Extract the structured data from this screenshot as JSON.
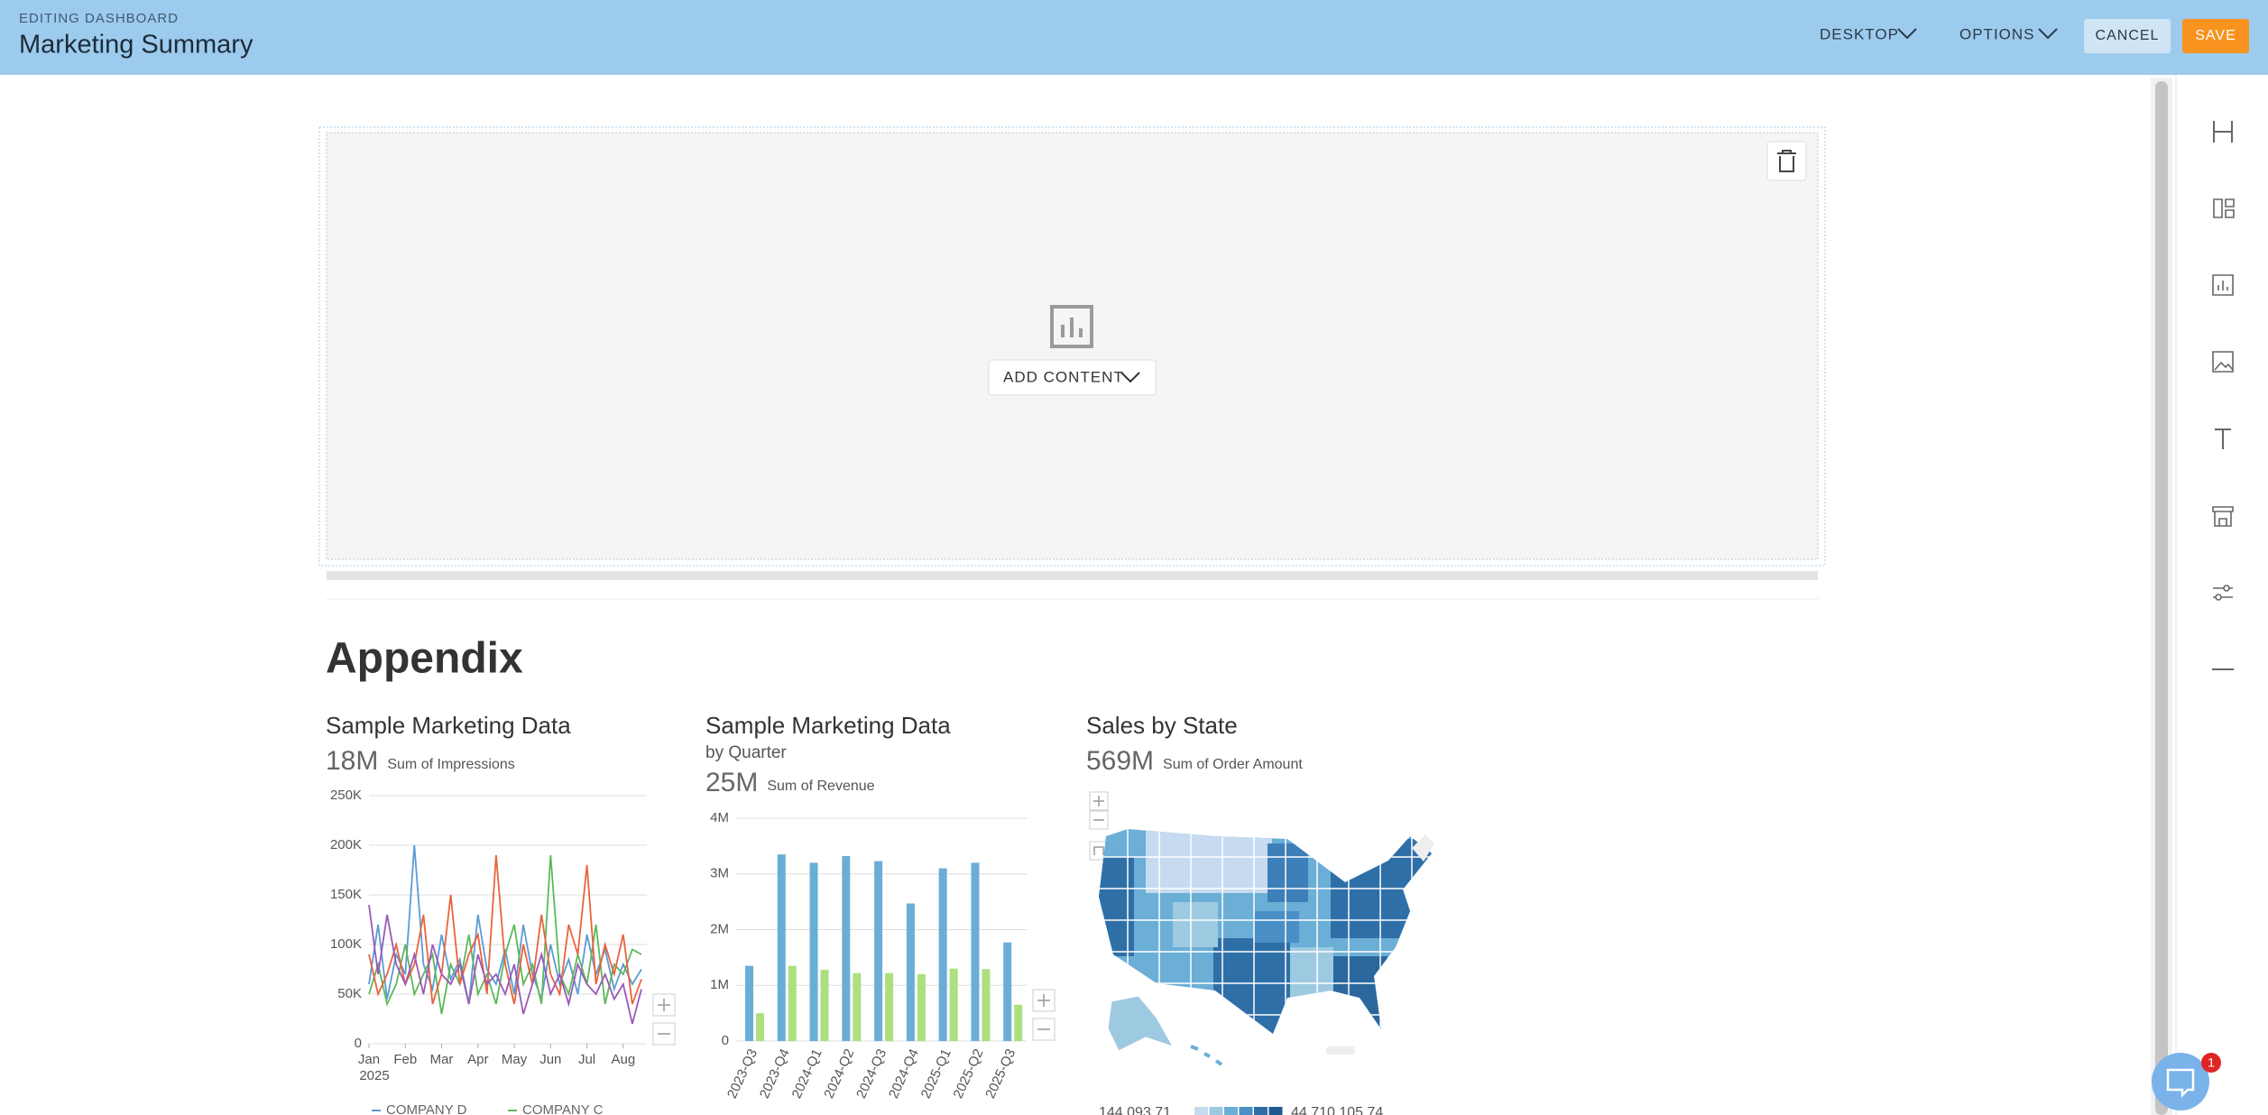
{
  "header": {
    "subtitle": "EDITING DASHBOARD",
    "title": "Marketing Summary",
    "menus": [
      "DESKTOP",
      "OPTIONS"
    ],
    "buttons": [
      "CANCEL",
      "SAVE"
    ]
  },
  "placeholder": {
    "button": "ADD CONTENT"
  },
  "section": {
    "title": "Appendix"
  },
  "chat": {
    "badge": "1"
  },
  "chart_data": [
    {
      "type": "line",
      "title": "Sample Marketing Data",
      "kpi": "18M",
      "kpi_label": "Sum of Impressions",
      "x": [
        1,
        1.25,
        1.5,
        1.75,
        2,
        2.25,
        2.5,
        2.75,
        3,
        3.25,
        3.5,
        3.75,
        4,
        4.25,
        4.5,
        4.75,
        5,
        5.25,
        5.5,
        5.75,
        6,
        6.25,
        6.5,
        6.75,
        7,
        7.25,
        7.5,
        7.75,
        8,
        8.25,
        8.5
      ],
      "xlim": [
        1,
        8.65
      ],
      "xticks": [
        {
          "value": 1,
          "label": "Jan"
        },
        {
          "value": 2,
          "label": "Feb"
        },
        {
          "value": 3,
          "label": "Mar"
        },
        {
          "value": 4,
          "label": "Apr"
        },
        {
          "value": 5,
          "label": "May"
        },
        {
          "value": 6,
          "label": "Jun"
        },
        {
          "value": 7,
          "label": "Jul"
        },
        {
          "value": 8,
          "label": "Aug"
        }
      ],
      "x_sub_label": "2025",
      "ylim": [
        0,
        250000
      ],
      "yticks": [
        0,
        {
          "value": 50000,
          "label": "50K"
        },
        {
          "value": 100000,
          "label": "100K"
        },
        {
          "value": 150000,
          "label": "150K"
        },
        {
          "value": 200000,
          "label": "200K"
        },
        {
          "value": 250000,
          "label": "250K"
        }
      ],
      "grid": true,
      "series": [
        {
          "name": "COMPANY D",
          "color": "#5b9bd5",
          "values": [
            60000,
            120000,
            45000,
            90000,
            70000,
            200000,
            80000,
            55000,
            110000,
            65000,
            85000,
            40000,
            130000,
            75000,
            60000,
            95000,
            50000,
            120000,
            70000,
            45000,
            100000,
            60000,
            85000,
            50000,
            110000,
            70000,
            95000,
            55000,
            80000,
            60000,
            75000
          ]
        },
        {
          "name": "COMPANY C",
          "color": "#5cb85c",
          "values": [
            50000,
            80000,
            40000,
            60000,
            100000,
            50000,
            70000,
            90000,
            30000,
            80000,
            60000,
            110000,
            50000,
            70000,
            40000,
            90000,
            120000,
            60000,
            80000,
            40000,
            190000,
            70000,
            50000,
            90000,
            60000,
            120000,
            40000,
            80000,
            70000,
            95000,
            90000
          ]
        },
        {
          "color": "#e8643c",
          "values": [
            90000,
            50000,
            70000,
            100000,
            60000,
            80000,
            130000,
            40000,
            70000,
            150000,
            60000,
            90000,
            110000,
            50000,
            190000,
            80000,
            40000,
            100000,
            60000,
            130000,
            70000,
            50000,
            120000,
            90000,
            180000,
            60000,
            100000,
            70000,
            110000,
            40000,
            65000
          ]
        },
        {
          "color": "#9b59b6",
          "values": [
            140000,
            70000,
            130000,
            80000,
            60000,
            90000,
            50000,
            100000,
            70000,
            60000,
            80000,
            40000,
            90000,
            60000,
            70000,
            50000,
            80000,
            30000,
            60000,
            90000,
            50000,
            70000,
            40000,
            80000,
            60000,
            50000,
            70000,
            45000,
            60000,
            20000,
            55000
          ]
        }
      ]
    },
    {
      "type": "bar",
      "title": "Sample Marketing Data",
      "subtitle": "by Quarter",
      "kpi": "25M",
      "kpi_label": "Sum of Revenue",
      "categories": [
        "2023-Q3",
        "2023-Q4",
        "2024-Q1",
        "2024-Q2",
        "2024-Q3",
        "2024-Q4",
        "2025-Q1",
        "2025-Q2",
        "2025-Q3"
      ],
      "ylim": [
        0,
        4000000
      ],
      "yticks": [
        0,
        {
          "value": 1000000,
          "label": "1M"
        },
        {
          "value": 2000000,
          "label": "2M"
        },
        {
          "value": 3000000,
          "label": "3M"
        },
        {
          "value": 4000000,
          "label": "4M"
        }
      ],
      "grid": true,
      "series": [
        {
          "color": "#6aaed6",
          "values": [
            1350000,
            3350000,
            3200000,
            3320000,
            3230000,
            2470000,
            3100000,
            3200000,
            1770000
          ]
        },
        {
          "color": "#addf7f",
          "values": [
            500000,
            1350000,
            1280000,
            1220000,
            1220000,
            1200000,
            1300000,
            1290000,
            650000
          ]
        }
      ]
    },
    {
      "type": "map",
      "title": "Sales by State",
      "kpi": "569M",
      "kpi_label": "Sum of Order Amount",
      "color_scale": {
        "min": {
          "value": 144093.71,
          "label": "144,093.71"
        },
        "max": {
          "value": 44710105.74,
          "label": "44,710,105.74"
        },
        "colors": [
          "#c6dbef",
          "#9ecae1",
          "#6baed6",
          "#4a8fc6",
          "#2f6fa7",
          "#1f5a8f"
        ]
      }
    }
  ]
}
